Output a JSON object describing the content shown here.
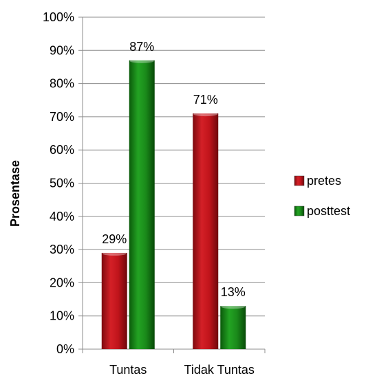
{
  "chart_data": {
    "type": "bar",
    "title": "",
    "xlabel": "",
    "ylabel": "Prosentase",
    "categories": [
      "Tuntas",
      "Tidak Tuntas"
    ],
    "series": [
      {
        "name": "pretes",
        "values": [
          29,
          71
        ],
        "labels": [
          "29%",
          "71%"
        ],
        "color": "#c0141b"
      },
      {
        "name": "posttest",
        "values": [
          87,
          13
        ],
        "labels": [
          "87%",
          "13%"
        ],
        "color": "#1a8a1a"
      }
    ],
    "ylim": [
      0,
      100
    ],
    "yticks": [
      "0%",
      "10%",
      "20%",
      "30%",
      "40%",
      "50%",
      "60%",
      "70%",
      "80%",
      "90%",
      "100%"
    ],
    "grid": true,
    "legend": "right"
  }
}
